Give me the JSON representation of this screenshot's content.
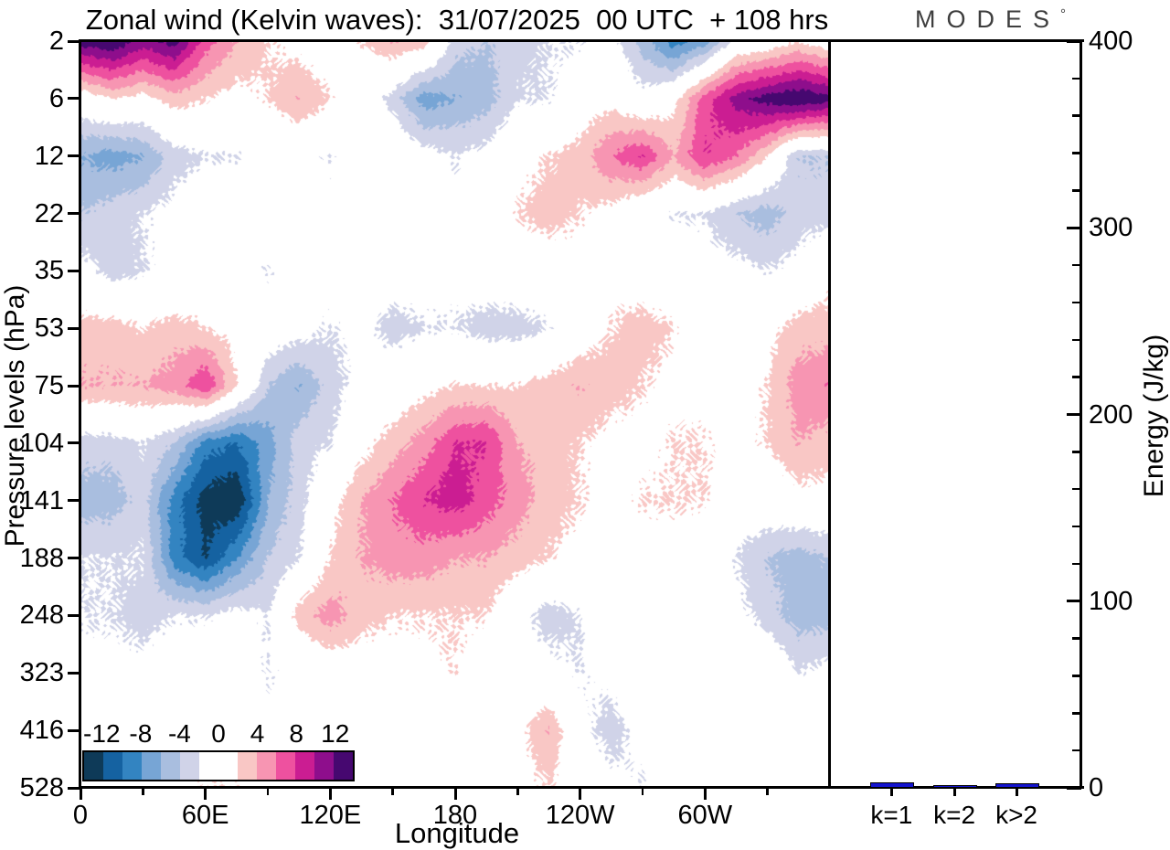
{
  "title": {
    "text": "Zonal wind (Kelvin waves):  31/07/2025  00 UTC  + 108 hrs"
  },
  "logo": {
    "text": "MODES",
    "superscript": "°",
    "color": "#3e3e3e"
  },
  "axes": {
    "pressure": {
      "label": "Pressure levels (hPa)",
      "ticks": [
        2,
        6,
        12,
        22,
        35,
        53,
        75,
        104,
        141,
        188,
        248,
        323,
        416,
        528
      ]
    },
    "longitude": {
      "label": "Longitude",
      "major_ticks": [
        {
          "v": 0,
          "label": "0"
        },
        {
          "v": 60,
          "label": "60E"
        },
        {
          "v": 120,
          "label": "120E"
        },
        {
          "v": 180,
          "label": "180"
        },
        {
          "v": 240,
          "label": "120W"
        },
        {
          "v": 300,
          "label": "60W"
        }
      ],
      "minor_ticks": [
        30,
        90,
        150,
        210,
        270,
        330
      ],
      "range": [
        0,
        360
      ]
    },
    "energy": {
      "label": "Energy (J/kg)",
      "major_ticks": [
        0,
        100,
        200,
        300,
        400
      ],
      "minor_step": 20,
      "range": [
        0,
        400
      ]
    }
  },
  "colorbar": {
    "labels": [
      "-12",
      "-8",
      "-4",
      "0",
      "4",
      "8",
      "12"
    ]
  },
  "chart_data": [
    {
      "type": "heatmap",
      "title": "Zonal wind (Kelvin waves):  31/07/2025  00 UTC  + 108 hrs",
      "xlabel": "Longitude",
      "ylabel": "Pressure levels (hPa)",
      "x_lon_deg": [
        0,
        15,
        30,
        45,
        60,
        75,
        90,
        105,
        120,
        135,
        150,
        165,
        180,
        195,
        210,
        225,
        240,
        255,
        270,
        285,
        300,
        315,
        330,
        345,
        360
      ],
      "y_pressure_hpa": [
        2,
        6,
        12,
        22,
        35,
        53,
        75,
        104,
        141,
        188,
        248,
        323,
        416,
        528
      ],
      "contour_levels": [
        -12,
        -10,
        -8,
        -6,
        -4,
        -2,
        0,
        2,
        4,
        6,
        8,
        10,
        12
      ],
      "colors": [
        "#0e3a58",
        "#1562a1",
        "#3384c1",
        "#77a5d5",
        "#a9bedf",
        "#d0d3e8",
        "#ffffff",
        "#ffffff",
        "#f9c7c5",
        "#f795b2",
        "#ee519f",
        "#cb1d92",
        "#8e0e8c",
        "#460870"
      ],
      "values": [
        [
          13,
          14,
          11,
          13,
          7,
          4,
          2,
          1,
          0,
          2,
          4,
          3,
          -3,
          -4,
          -3,
          -2,
          -2,
          -1,
          -5,
          -9,
          -7,
          -1,
          0,
          2,
          0
        ],
        [
          0,
          2,
          1,
          3,
          2,
          1,
          2,
          4,
          2,
          0,
          -3,
          -7,
          -6,
          -5,
          -2,
          -2,
          0,
          1,
          -1,
          1,
          7,
          11,
          13,
          14,
          13
        ],
        [
          -6,
          -7,
          -6,
          -3,
          -2,
          -2,
          -1,
          -1,
          -2,
          0,
          1,
          -1,
          -2,
          -1,
          1,
          2,
          3,
          6,
          8,
          4,
          8,
          6,
          2,
          -4,
          -4
        ],
        [
          -4,
          -3,
          -2,
          -1,
          0,
          0,
          0,
          -1,
          -1,
          1,
          0,
          -1,
          -1,
          0,
          2,
          3,
          2,
          1,
          -1,
          -2,
          -2,
          -4,
          -5,
          -3,
          -3
        ],
        [
          -1,
          -3,
          -2,
          -1,
          0,
          -1,
          -2,
          -1,
          -1,
          0,
          0,
          -1,
          -1,
          0,
          0,
          0,
          1,
          1,
          0,
          0,
          -1,
          -1,
          -2,
          -1,
          1
        ],
        [
          3,
          3,
          2,
          3,
          2,
          1,
          0,
          -1,
          -2,
          -1,
          -3,
          -2,
          -2,
          -3,
          -3,
          -2,
          0,
          2,
          3,
          2,
          0,
          0,
          1,
          3,
          3
        ],
        [
          4,
          4,
          4,
          5,
          8,
          2,
          -4,
          -6,
          -3,
          -1,
          0,
          1,
          2,
          2,
          2,
          3,
          4,
          3,
          2,
          1,
          1,
          1,
          2,
          5,
          6
        ],
        [
          -3,
          -3,
          -2,
          -4,
          -9,
          -10,
          -7,
          -3,
          -2,
          1,
          3,
          5,
          8,
          8,
          4,
          3,
          2,
          1,
          1,
          2,
          2,
          1,
          2,
          4,
          3
        ],
        [
          -5,
          -5,
          -3,
          -9,
          -13,
          -14,
          -6,
          -3,
          1,
          4,
          6,
          8,
          9,
          7,
          5,
          3,
          2,
          1,
          2,
          2,
          2,
          0,
          0,
          1,
          1
        ],
        [
          -2,
          -2,
          -2,
          -9,
          -12,
          -8,
          -4,
          -2,
          2,
          4,
          5,
          5,
          4,
          4,
          3,
          2,
          1,
          1,
          1,
          1,
          0,
          -2,
          -4,
          -5,
          -4
        ],
        [
          -2,
          -2,
          -3,
          -2,
          -2,
          -1,
          -2,
          3,
          5,
          3,
          2,
          2,
          2,
          2,
          -1,
          -3,
          -2,
          1,
          0,
          1,
          0,
          -1,
          -3,
          -5,
          -5
        ],
        [
          -1,
          -1,
          -1,
          0,
          0,
          0,
          -2,
          -1,
          0,
          0,
          1,
          1,
          2,
          0,
          -1,
          -1,
          -2,
          -1,
          0,
          0,
          0,
          0,
          1,
          -2,
          -1
        ],
        [
          0,
          0,
          0,
          1,
          1,
          0,
          -1,
          -1,
          0,
          0,
          0,
          0,
          0,
          0,
          1,
          4,
          -1,
          -3,
          -1,
          0,
          0,
          0,
          0,
          0,
          0
        ],
        [
          0,
          0,
          0,
          1,
          2,
          2,
          0,
          0,
          0,
          0,
          0,
          0,
          0,
          1,
          1,
          2,
          0,
          -1,
          -2,
          0,
          0,
          0,
          0,
          0,
          0
        ]
      ]
    },
    {
      "type": "bar",
      "categories": [
        "k=1",
        "k=2",
        "k>2"
      ],
      "values": [
        2.0,
        0.6,
        1.3
      ],
      "ylabel": "Energy (J/kg)",
      "ylim": [
        0,
        400
      ],
      "bar_color": "#1414cf"
    }
  ]
}
